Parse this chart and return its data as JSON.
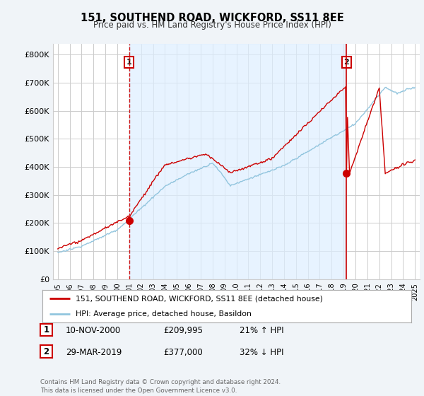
{
  "title": "151, SOUTHEND ROAD, WICKFORD, SS11 8EE",
  "subtitle": "Price paid vs. HM Land Registry's House Price Index (HPI)",
  "ylabel_ticks": [
    "£0",
    "£100K",
    "£200K",
    "£300K",
    "£400K",
    "£500K",
    "£600K",
    "£700K",
    "£800K"
  ],
  "ytick_values": [
    0,
    100000,
    200000,
    300000,
    400000,
    500000,
    600000,
    700000,
    800000
  ],
  "ylim": [
    0,
    840000
  ],
  "sale1_date": 2001.0,
  "sale1_price": 209995,
  "sale1_label": "1",
  "sale2_date": 2019.25,
  "sale2_price": 377000,
  "sale2_label": "2",
  "legend_line1": "151, SOUTHEND ROAD, WICKFORD, SS11 8EE (detached house)",
  "legend_line2": "HPI: Average price, detached house, Basildon",
  "table_row1": [
    "1",
    "10-NOV-2000",
    "£209,995",
    "21% ↑ HPI"
  ],
  "table_row2": [
    "2",
    "29-MAR-2019",
    "£377,000",
    "32% ↓ HPI"
  ],
  "footnote": "Contains HM Land Registry data © Crown copyright and database right 2024.\nThis data is licensed under the Open Government Licence v3.0.",
  "hpi_color": "#92c5de",
  "price_color": "#cc0000",
  "vline_color": "#cc0000",
  "shade_color": "#ddeeff",
  "background_color": "#f0f4f8",
  "plot_bg_color": "#ffffff",
  "grid_color": "#cccccc",
  "xlim_left": 1994.6,
  "xlim_right": 2025.4
}
